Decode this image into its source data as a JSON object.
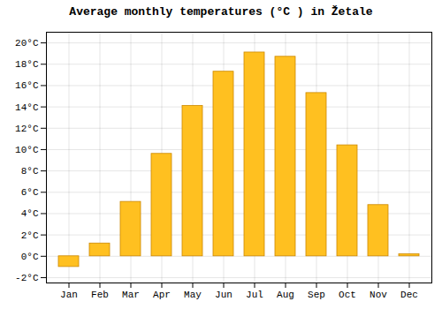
{
  "chart_data": {
    "type": "bar",
    "title": "Average monthly temperatures (°C ) in Žetale",
    "categories": [
      "Jan",
      "Feb",
      "Mar",
      "Apr",
      "May",
      "Jun",
      "Jul",
      "Aug",
      "Sep",
      "Oct",
      "Nov",
      "Dec"
    ],
    "values": [
      -1.0,
      1.2,
      5.1,
      9.6,
      14.1,
      17.3,
      19.1,
      18.7,
      15.3,
      10.4,
      4.8,
      0.2
    ],
    "color": "#FFC020",
    "ylim": [
      -2.5,
      21.0
    ],
    "yticks": [
      {
        "value": -2,
        "label": "-2°C"
      },
      {
        "value": 0,
        "label": "0°C"
      },
      {
        "value": 2,
        "label": "2°C"
      },
      {
        "value": 4,
        "label": "4°C"
      },
      {
        "value": 6,
        "label": "6°C"
      },
      {
        "value": 8,
        "label": "8°C"
      },
      {
        "value": 10,
        "label": "10°C"
      },
      {
        "value": 12,
        "label": "12°C"
      },
      {
        "value": 14,
        "label": "14°C"
      },
      {
        "value": 16,
        "label": "16°C"
      },
      {
        "value": 18,
        "label": "18°C"
      },
      {
        "value": 20,
        "label": "20°C"
      }
    ],
    "grid": true
  }
}
